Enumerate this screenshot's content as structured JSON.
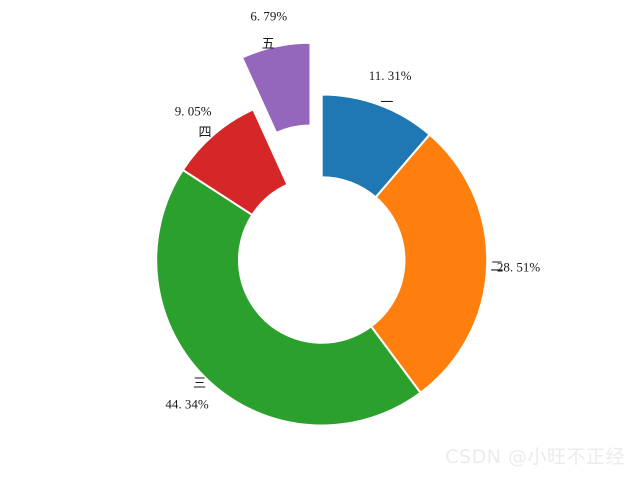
{
  "figure": {
    "background": "#ffffff",
    "text_color": "#1a1a1a"
  },
  "watermark": {
    "text": "CSDN @小旺不正经",
    "color": "#ebebeb"
  },
  "chart_data": {
    "type": "pie",
    "subtype": "donut",
    "title": "",
    "xlabel": "",
    "ylabel": "",
    "legend": "none",
    "grid": false,
    "categories": [
      "一",
      "二",
      "三",
      "四",
      "五"
    ],
    "values": [
      11.31,
      28.51,
      44.34,
      9.05,
      6.79
    ],
    "pct_labels": [
      "11. 31%",
      "28. 51%",
      "44. 34%",
      "9. 05%",
      "6. 79%"
    ],
    "colors": [
      "#1f77b4",
      "#ff7f0e",
      "#2ca02c",
      "#d62728",
      "#9467bd"
    ],
    "start_angle": 90,
    "direction": "clockwise",
    "explode": [
      0,
      0,
      0,
      0,
      0.32
    ],
    "donut_hole_ratio": 0.5,
    "wedge_edge_color": "#ffffff"
  }
}
